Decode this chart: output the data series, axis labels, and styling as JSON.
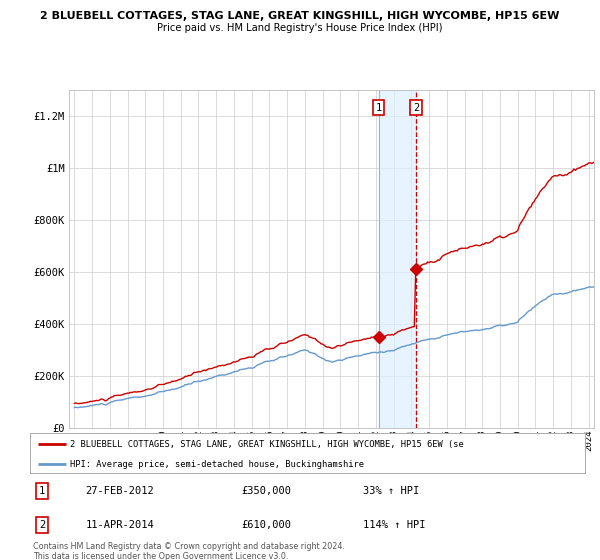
{
  "title1": "2 BLUEBELL COTTAGES, STAG LANE, GREAT KINGSHILL, HIGH WYCOMBE, HP15 6EW",
  "title2": "Price paid vs. HM Land Registry's House Price Index (HPI)",
  "ylabel_ticks": [
    "£0",
    "£200K",
    "£400K",
    "£600K",
    "£800K",
    "£1M",
    "£1.2M"
  ],
  "ytick_values": [
    0,
    200000,
    400000,
    600000,
    800000,
    1000000,
    1200000
  ],
  "ylim": [
    0,
    1300000
  ],
  "x_start_year": 1995,
  "x_end_year": 2024,
  "background_color": "#ffffff",
  "plot_bg_color": "#ffffff",
  "grid_color": "#cccccc",
  "sale1_year": 2012.15,
  "sale1_price": 350000,
  "sale2_year": 2014.27,
  "sale2_price": 610000,
  "shade_color": "#ddeeff",
  "vline1_style": "solid",
  "vline2_style": "dashed",
  "vline_color": "#cc0000",
  "dot_color": "#cc0000",
  "hpi_line_color": "#6699cc",
  "price_line_color": "#cc0000",
  "legend_label1": "2 BLUEBELL COTTAGES, STAG LANE, GREAT KINGSHILL, HIGH WYCOMBE, HP15 6EW (se",
  "legend_label2": "HPI: Average price, semi-detached house, Buckinghamshire",
  "table_entries": [
    {
      "num": "1",
      "date": "27-FEB-2012",
      "price": "£350,000",
      "change": "33% ↑ HPI"
    },
    {
      "num": "2",
      "date": "11-APR-2014",
      "price": "£610,000",
      "change": "114% ↑ HPI"
    }
  ],
  "footnote": "Contains HM Land Registry data © Crown copyright and database right 2024.\nThis data is licensed under the Open Government Licence v3.0."
}
